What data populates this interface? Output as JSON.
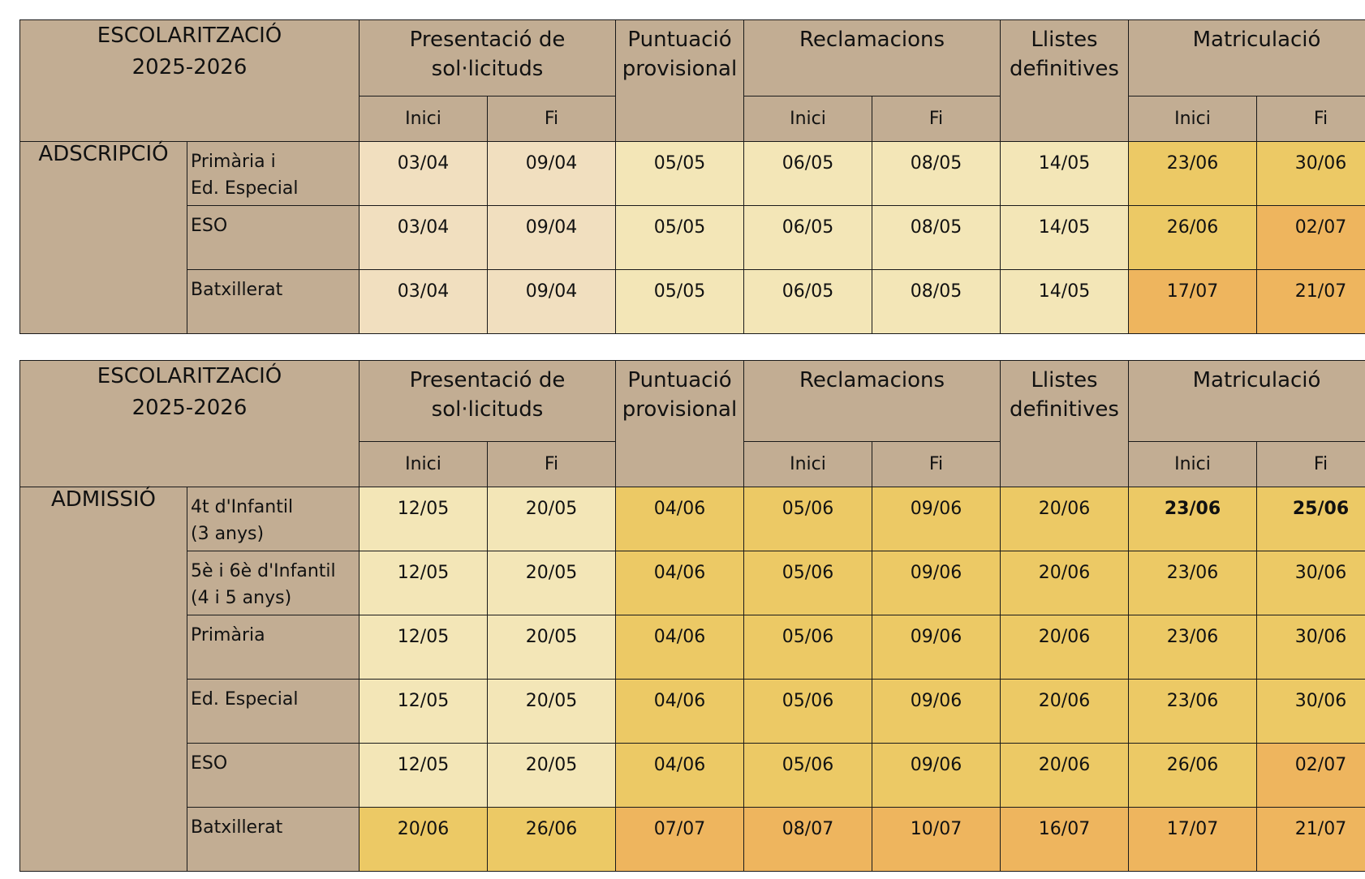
{
  "header": {
    "title_line1": "ESCOLARITZACIÓ",
    "title_line2": "2025-2026",
    "presentacio_line1": "Presentació de",
    "presentacio_line2": "sol·licituds",
    "puntuacio_line1": "Puntuació",
    "puntuacio_line2": "provisional",
    "reclamacions": "Reclamacions",
    "llistes_line1": "Llistes",
    "llistes_line2": "definitives",
    "matriculacio": "Matriculació",
    "inici": "Inici",
    "fi": "Fi"
  },
  "colors": {
    "header": "#c2ad93",
    "peach": "#f1dfbf",
    "cream": "#f3e6b7",
    "gold": "#ecc965",
    "orange": "#eeb55e"
  },
  "adscripcio": {
    "label": "ADSCRIPCIÓ",
    "rows": [
      {
        "level_line1": "Primària i",
        "level_line2": "Ed. Especial",
        "pres_inici": "03/04",
        "pres_fi": "09/04",
        "punt": "05/05",
        "recl_inici": "06/05",
        "recl_fi": "08/05",
        "llistes": "14/05",
        "mat_inici": "23/06",
        "mat_fi": "30/06"
      },
      {
        "level_line1": "ESO",
        "level_line2": "",
        "pres_inici": "03/04",
        "pres_fi": "09/04",
        "punt": "05/05",
        "recl_inici": "06/05",
        "recl_fi": "08/05",
        "llistes": "14/05",
        "mat_inici": "26/06",
        "mat_fi": "02/07"
      },
      {
        "level_line1": "Batxillerat",
        "level_line2": "",
        "pres_inici": "03/04",
        "pres_fi": "09/04",
        "punt": "05/05",
        "recl_inici": "06/05",
        "recl_fi": "08/05",
        "llistes": "14/05",
        "mat_inici": "17/07",
        "mat_fi": "21/07"
      }
    ]
  },
  "admissio": {
    "label": "ADMISSIÓ",
    "rows": [
      {
        "level_line1": "4t d'Infantil",
        "level_line2": "(3 anys)",
        "pres_inici": "12/05",
        "pres_fi": "20/05",
        "punt": "04/06",
        "recl_inici": "05/06",
        "recl_fi": "09/06",
        "llistes": "20/06",
        "mat_inici": "23/06",
        "mat_fi": "25/06"
      },
      {
        "level_line1": "5è i 6è d'Infantil",
        "level_line2": "(4 i 5 anys)",
        "pres_inici": "12/05",
        "pres_fi": "20/05",
        "punt": "04/06",
        "recl_inici": "05/06",
        "recl_fi": "09/06",
        "llistes": "20/06",
        "mat_inici": "23/06",
        "mat_fi": "30/06"
      },
      {
        "level_line1": "Primària",
        "level_line2": "",
        "pres_inici": "12/05",
        "pres_fi": "20/05",
        "punt": "04/06",
        "recl_inici": "05/06",
        "recl_fi": "09/06",
        "llistes": "20/06",
        "mat_inici": "23/06",
        "mat_fi": "30/06"
      },
      {
        "level_line1": "Ed. Especial",
        "level_line2": "",
        "pres_inici": "12/05",
        "pres_fi": "20/05",
        "punt": "04/06",
        "recl_inici": "05/06",
        "recl_fi": "09/06",
        "llistes": "20/06",
        "mat_inici": "23/06",
        "mat_fi": "30/06"
      },
      {
        "level_line1": "ESO",
        "level_line2": "",
        "pres_inici": "12/05",
        "pres_fi": "20/05",
        "punt": "04/06",
        "recl_inici": "05/06",
        "recl_fi": "09/06",
        "llistes": "20/06",
        "mat_inici": "26/06",
        "mat_fi": "02/07"
      },
      {
        "level_line1": "Batxillerat",
        "level_line2": "",
        "pres_inici": "20/06",
        "pres_fi": "26/06",
        "punt": "07/07",
        "recl_inici": "08/07",
        "recl_fi": "10/07",
        "llistes": "16/07",
        "mat_inici": "17/07",
        "mat_fi": "21/07"
      }
    ]
  }
}
